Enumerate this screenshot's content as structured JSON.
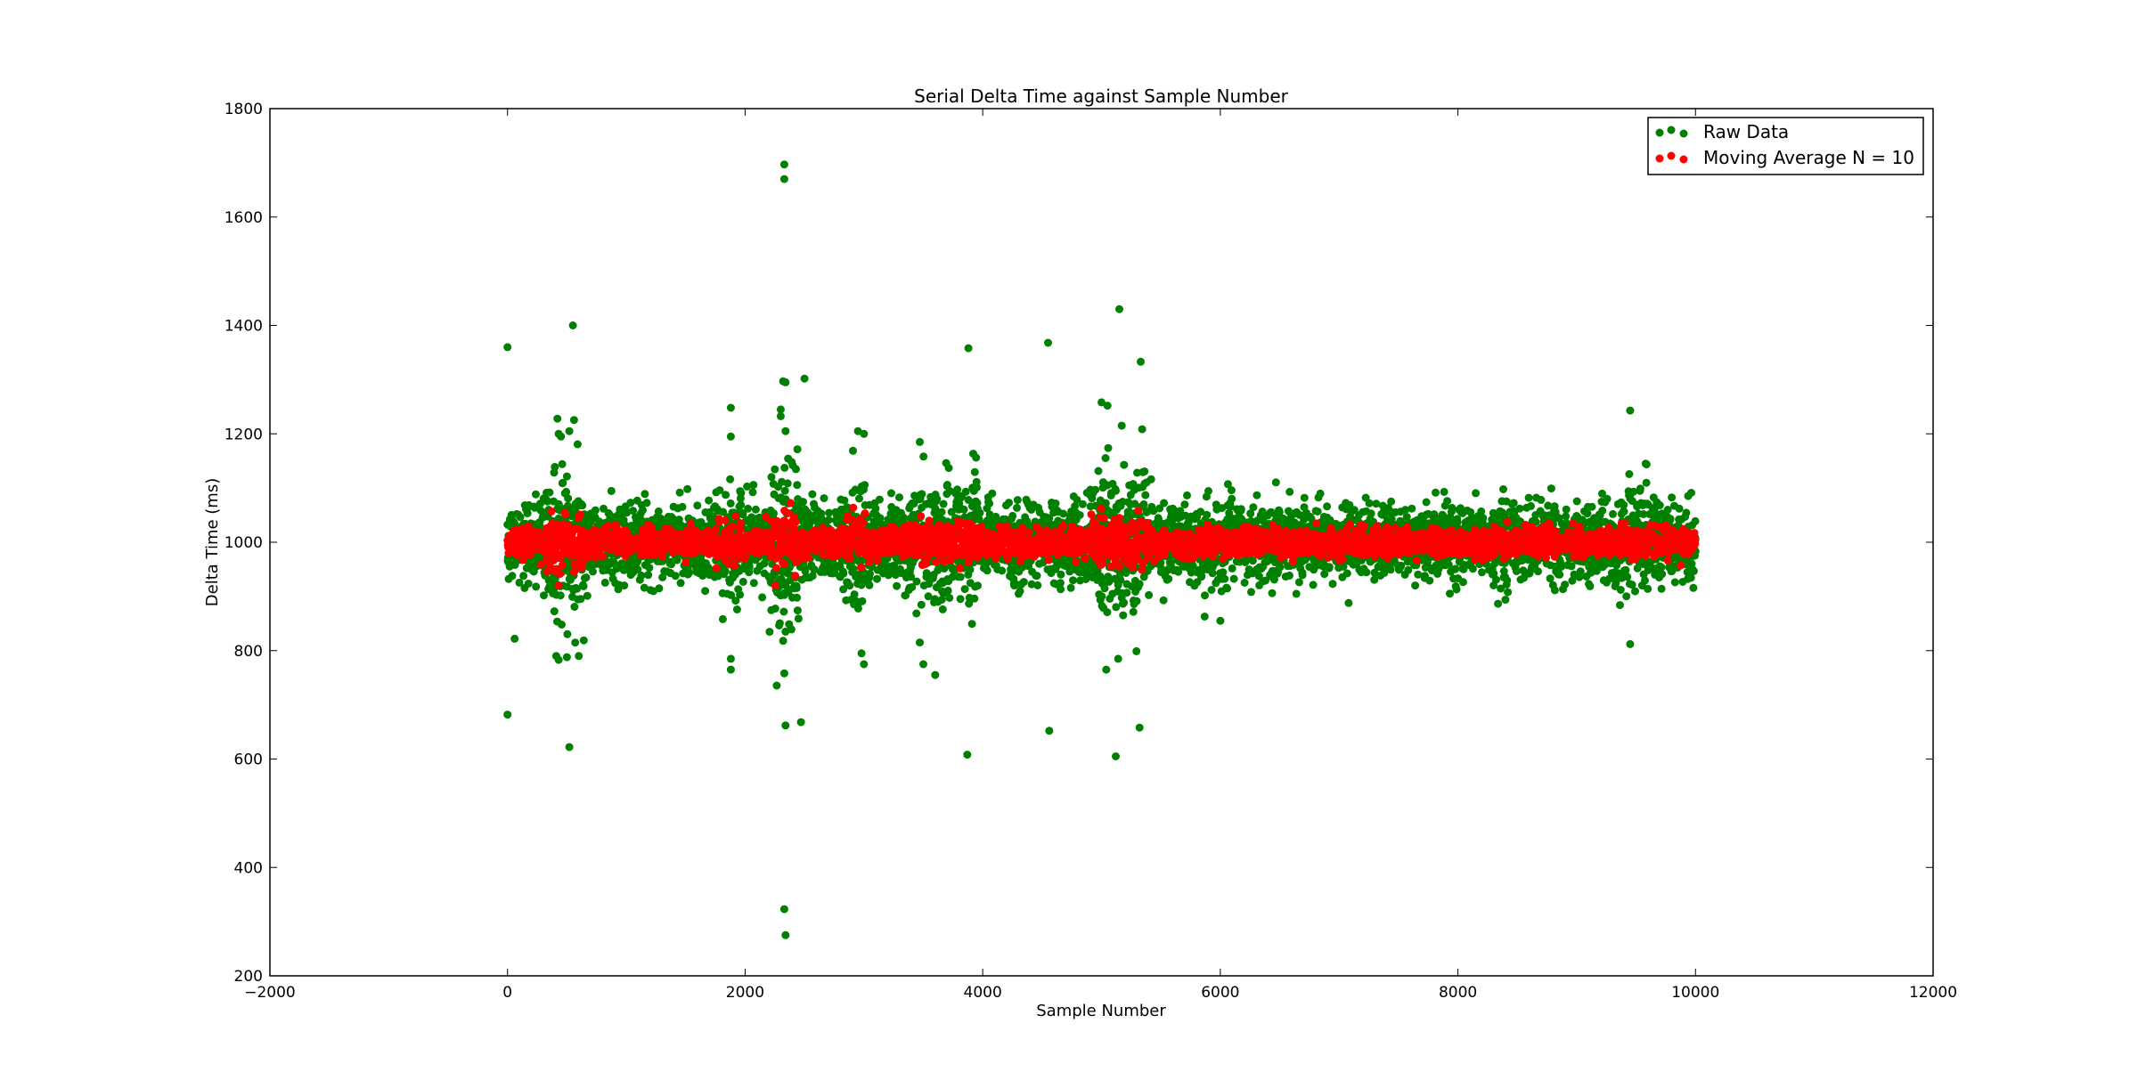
{
  "chart_data": {
    "type": "scatter",
    "title": "Serial Delta Time against Sample Number",
    "xlabel": "Sample Number",
    "ylabel": "Delta Time (ms)",
    "xlim": [
      -2000,
      12000
    ],
    "ylim": [
      200,
      1800
    ],
    "xticks": [
      -2000,
      0,
      2000,
      4000,
      6000,
      8000,
      10000,
      12000
    ],
    "yticks": [
      200,
      400,
      600,
      800,
      1000,
      1200,
      1400,
      1600,
      1800
    ],
    "xtick_labels": [
      "−2000",
      "0",
      "2000",
      "4000",
      "6000",
      "8000",
      "10000",
      "12000"
    ],
    "ytick_labels": [
      "200",
      "400",
      "600",
      "800",
      "1000",
      "1200",
      "1400",
      "1600",
      "1800"
    ],
    "grid": false,
    "legend_position": "top-right",
    "legend": [
      "Raw Data",
      "Moving Average N = 10"
    ],
    "colors": {
      "raw": "#008000",
      "avg": "#ff0000"
    },
    "series": [
      {
        "name": "Raw Data",
        "color": "#008000",
        "x_range": [
          0,
          10000
        ],
        "typical_band": [
          930,
          1070
        ],
        "outliers": [
          [
            0,
            1360
          ],
          [
            0,
            682
          ],
          [
            60,
            822
          ],
          [
            420,
            1228
          ],
          [
            430,
            1200
          ],
          [
            450,
            1195
          ],
          [
            520,
            1205
          ],
          [
            550,
            1400
          ],
          [
            410,
            790
          ],
          [
            430,
            783
          ],
          [
            500,
            788
          ],
          [
            600,
            790
          ],
          [
            520,
            622
          ],
          [
            1880,
            1248
          ],
          [
            1880,
            1195
          ],
          [
            1880,
            785
          ],
          [
            1880,
            765
          ],
          [
            2330,
            1697
          ],
          [
            2330,
            1670
          ],
          [
            2320,
            1297
          ],
          [
            2340,
            1295
          ],
          [
            2500,
            1302
          ],
          [
            2300,
            1245
          ],
          [
            2340,
            1205
          ],
          [
            2340,
            835
          ],
          [
            2320,
            818
          ],
          [
            2330,
            758
          ],
          [
            2340,
            662
          ],
          [
            2470,
            668
          ],
          [
            2330,
            323
          ],
          [
            2340,
            275
          ],
          [
            2950,
            1205
          ],
          [
            3000,
            1200
          ],
          [
            2980,
            795
          ],
          [
            3000,
            775
          ],
          [
            3470,
            1185
          ],
          [
            3470,
            815
          ],
          [
            3500,
            775
          ],
          [
            3600,
            755
          ],
          [
            3880,
            1358
          ],
          [
            3870,
            608
          ],
          [
            4550,
            1368
          ],
          [
            4560,
            652
          ],
          [
            5000,
            1258
          ],
          [
            5050,
            1252
          ],
          [
            5150,
            1430
          ],
          [
            5170,
            1215
          ],
          [
            5330,
            1333
          ],
          [
            5040,
            765
          ],
          [
            5140,
            785
          ],
          [
            5120,
            605
          ],
          [
            5320,
            658
          ],
          [
            9450,
            1243
          ],
          [
            9580,
            1145
          ],
          [
            9450,
            812
          ]
        ]
      },
      {
        "name": "Moving Average N = 10",
        "color": "#ff0000",
        "x_range": [
          0,
          10000
        ],
        "typical_band": [
          975,
          1025
        ],
        "extremes": [
          [
            2330,
            1040
          ],
          [
            2330,
            960
          ],
          [
            3880,
            1035
          ],
          [
            3880,
            963
          ],
          [
            5150,
            1045
          ],
          [
            5150,
            955
          ]
        ]
      }
    ]
  }
}
